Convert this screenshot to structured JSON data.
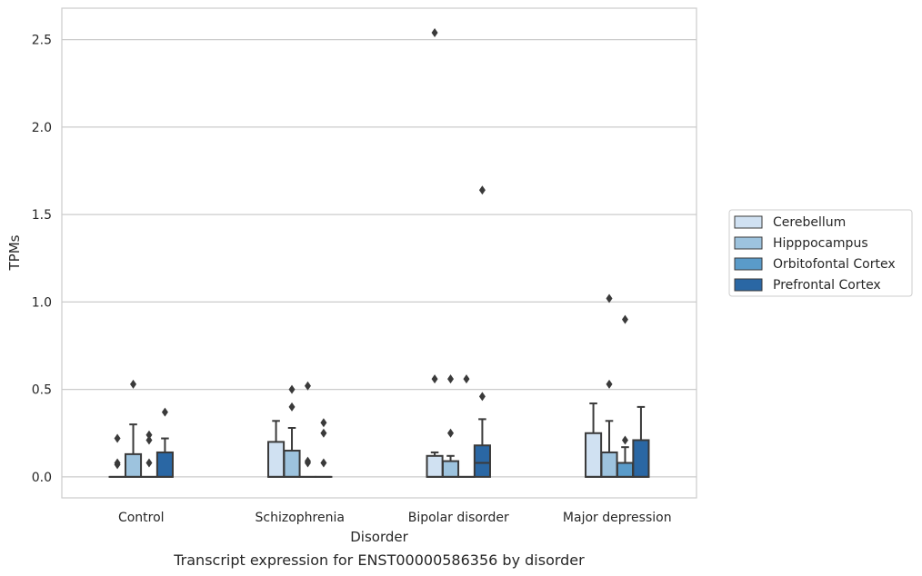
{
  "chart_data": {
    "type": "box",
    "title": "",
    "caption": "Transcript expression for ENST00000586356 by disorder",
    "xlabel": "Disorder",
    "ylabel": "TPMs",
    "ylim": [
      -0.12,
      2.68
    ],
    "yticks": [
      0.0,
      0.5,
      1.0,
      1.5,
      2.0,
      2.5
    ],
    "ytick_labels": [
      "0.0",
      "0.5",
      "1.0",
      "1.5",
      "2.0",
      "2.5"
    ],
    "grid": "horizontal",
    "legend_position": "right",
    "categories": [
      "Control",
      "Schizophrenia",
      "Bipolar disorder",
      "Major depression"
    ],
    "series": [
      {
        "name": "Cerebellum",
        "color": "#d0e1f2",
        "boxes": [
          {
            "q1": 0.0,
            "median": 0.0,
            "q3": 0.0,
            "whisker_low": 0.0,
            "whisker_high": 0.0,
            "outliers": [
              0.22,
              0.08,
              0.07
            ]
          },
          {
            "q1": 0.0,
            "median": 0.0,
            "q3": 0.2,
            "whisker_low": 0.0,
            "whisker_high": 0.32,
            "outliers": []
          },
          {
            "q1": 0.0,
            "median": 0.0,
            "q3": 0.12,
            "whisker_low": 0.0,
            "whisker_high": 0.14,
            "outliers": [
              0.56,
              2.54
            ]
          },
          {
            "q1": 0.0,
            "median": 0.0,
            "q3": 0.25,
            "whisker_low": 0.0,
            "whisker_high": 0.42,
            "outliers": []
          }
        ]
      },
      {
        "name": "Hipppocampus",
        "color": "#9dc3de",
        "boxes": [
          {
            "q1": 0.0,
            "median": 0.0,
            "q3": 0.13,
            "whisker_low": 0.0,
            "whisker_high": 0.3,
            "outliers": [
              0.53
            ]
          },
          {
            "q1": 0.0,
            "median": 0.0,
            "q3": 0.15,
            "whisker_low": 0.0,
            "whisker_high": 0.28,
            "outliers": [
              0.4,
              0.5
            ]
          },
          {
            "q1": 0.0,
            "median": 0.0,
            "q3": 0.09,
            "whisker_low": 0.0,
            "whisker_high": 0.12,
            "outliers": [
              0.25,
              0.56
            ]
          },
          {
            "q1": 0.0,
            "median": 0.0,
            "q3": 0.14,
            "whisker_low": 0.0,
            "whisker_high": 0.32,
            "outliers": [
              0.53,
              1.02
            ]
          }
        ]
      },
      {
        "name": "Orbitofontal Cortex",
        "color": "#5a9bc9",
        "boxes": [
          {
            "q1": 0.0,
            "median": 0.0,
            "q3": 0.0,
            "whisker_low": 0.0,
            "whisker_high": 0.0,
            "outliers": [
              0.08,
              0.21,
              0.24
            ]
          },
          {
            "q1": 0.0,
            "median": 0.0,
            "q3": 0.0,
            "whisker_low": 0.0,
            "whisker_high": 0.0,
            "outliers": [
              0.08,
              0.09,
              0.52
            ]
          },
          {
            "q1": 0.0,
            "median": 0.0,
            "q3": 0.0,
            "whisker_low": 0.0,
            "whisker_high": 0.0,
            "outliers": [
              0.56
            ]
          },
          {
            "q1": 0.0,
            "median": 0.0,
            "q3": 0.08,
            "whisker_low": 0.0,
            "whisker_high": 0.17,
            "outliers": [
              0.21,
              0.9
            ]
          }
        ]
      },
      {
        "name": "Prefrontal Cortex",
        "color": "#2a67a4",
        "boxes": [
          {
            "q1": 0.0,
            "median": 0.0,
            "q3": 0.14,
            "whisker_low": 0.0,
            "whisker_high": 0.22,
            "outliers": [
              0.37
            ]
          },
          {
            "q1": 0.0,
            "median": 0.0,
            "q3": 0.0,
            "whisker_low": 0.0,
            "whisker_high": 0.0,
            "outliers": [
              0.08,
              0.25,
              0.31
            ]
          },
          {
            "q1": 0.0,
            "median": 0.08,
            "q3": 0.18,
            "whisker_low": 0.0,
            "whisker_high": 0.33,
            "outliers": [
              0.46,
              1.64
            ]
          },
          {
            "q1": 0.0,
            "median": 0.0,
            "q3": 0.21,
            "whisker_low": 0.0,
            "whisker_high": 0.4,
            "outliers": []
          }
        ]
      }
    ]
  }
}
